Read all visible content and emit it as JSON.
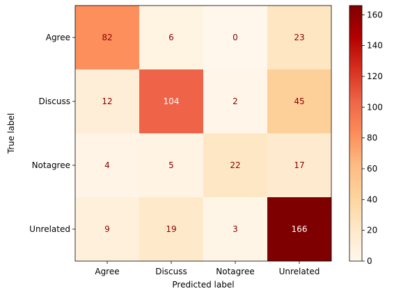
{
  "chart_data": {
    "type": "heatmap",
    "title": "",
    "xlabel": "Predicted label",
    "ylabel": "True label",
    "x_categories": [
      "Agree",
      "Discuss",
      "Notagree",
      "Unrelated"
    ],
    "y_categories": [
      "Agree",
      "Discuss",
      "Notagree",
      "Unrelated"
    ],
    "values": [
      [
        82,
        6,
        0,
        23
      ],
      [
        12,
        104,
        2,
        45
      ],
      [
        4,
        5,
        22,
        17
      ],
      [
        9,
        19,
        3,
        166
      ]
    ],
    "colormap": "OrRd",
    "value_text_color": "#8b0000",
    "colorbar": {
      "min": 0,
      "max": 166,
      "ticks": [
        0,
        20,
        40,
        60,
        80,
        100,
        120,
        140,
        160
      ]
    }
  }
}
